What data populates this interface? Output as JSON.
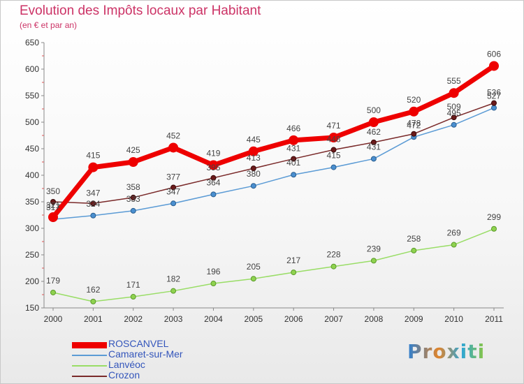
{
  "header": {
    "title": "Evolution des Impôts locaux par Habitant",
    "subtitle": "(en € et par an)"
  },
  "brand": "Proxiti",
  "chart_data": {
    "type": "line",
    "title": "Evolution des Impôts locaux par Habitant",
    "subtitle": "(en € et par an)",
    "xlabel": "",
    "ylabel": "",
    "categories": [
      "2000",
      "2001",
      "2002",
      "2003",
      "2004",
      "2005",
      "2006",
      "2007",
      "2008",
      "2009",
      "2010",
      "2011"
    ],
    "ylim": [
      150,
      650
    ],
    "yticks": [
      150,
      200,
      250,
      300,
      350,
      400,
      450,
      500,
      550,
      600,
      650
    ],
    "grid": false,
    "legend_position": "bottom-left",
    "series": [
      {
        "name": "ROSCANVEL",
        "color": "#ee0000",
        "values": [
          321,
          415,
          425,
          452,
          419,
          445,
          466,
          471,
          500,
          520,
          555,
          606
        ]
      },
      {
        "name": "Camaret-sur-Mer",
        "color": "#5b9bd5",
        "values": [
          317,
          324,
          333,
          347,
          364,
          380,
          401,
          415,
          431,
          472,
          495,
          527
        ]
      },
      {
        "name": "Lanvéoc",
        "color": "#99dd66",
        "values": [
          179,
          162,
          171,
          182,
          196,
          205,
          217,
          228,
          239,
          258,
          269,
          299
        ]
      },
      {
        "name": "Crozon",
        "color": "#7a2a2a",
        "values": [
          350,
          347,
          358,
          377,
          395,
          413,
          431,
          448,
          462,
          478,
          509,
          536
        ]
      }
    ],
    "labels": {
      "ROSCANVEL": [
        "321",
        "415",
        "425",
        "452",
        "419",
        "445",
        "466",
        "471",
        "500",
        "520",
        "555",
        "606"
      ],
      "Camaret-sur-Mer": [
        "317",
        "324",
        "333",
        "347",
        "364",
        "380",
        "401",
        "415",
        "431",
        "472",
        "495",
        "527"
      ],
      "Lanvéoc": [
        "179",
        "162",
        "171",
        "182",
        "196",
        "205",
        "217",
        "228",
        "239",
        "258",
        "269",
        "299"
      ],
      "Crozon": [
        "350",
        "347",
        "358",
        "377",
        "395",
        "413",
        "431",
        "448",
        "462",
        "478",
        "509",
        "536"
      ]
    }
  }
}
